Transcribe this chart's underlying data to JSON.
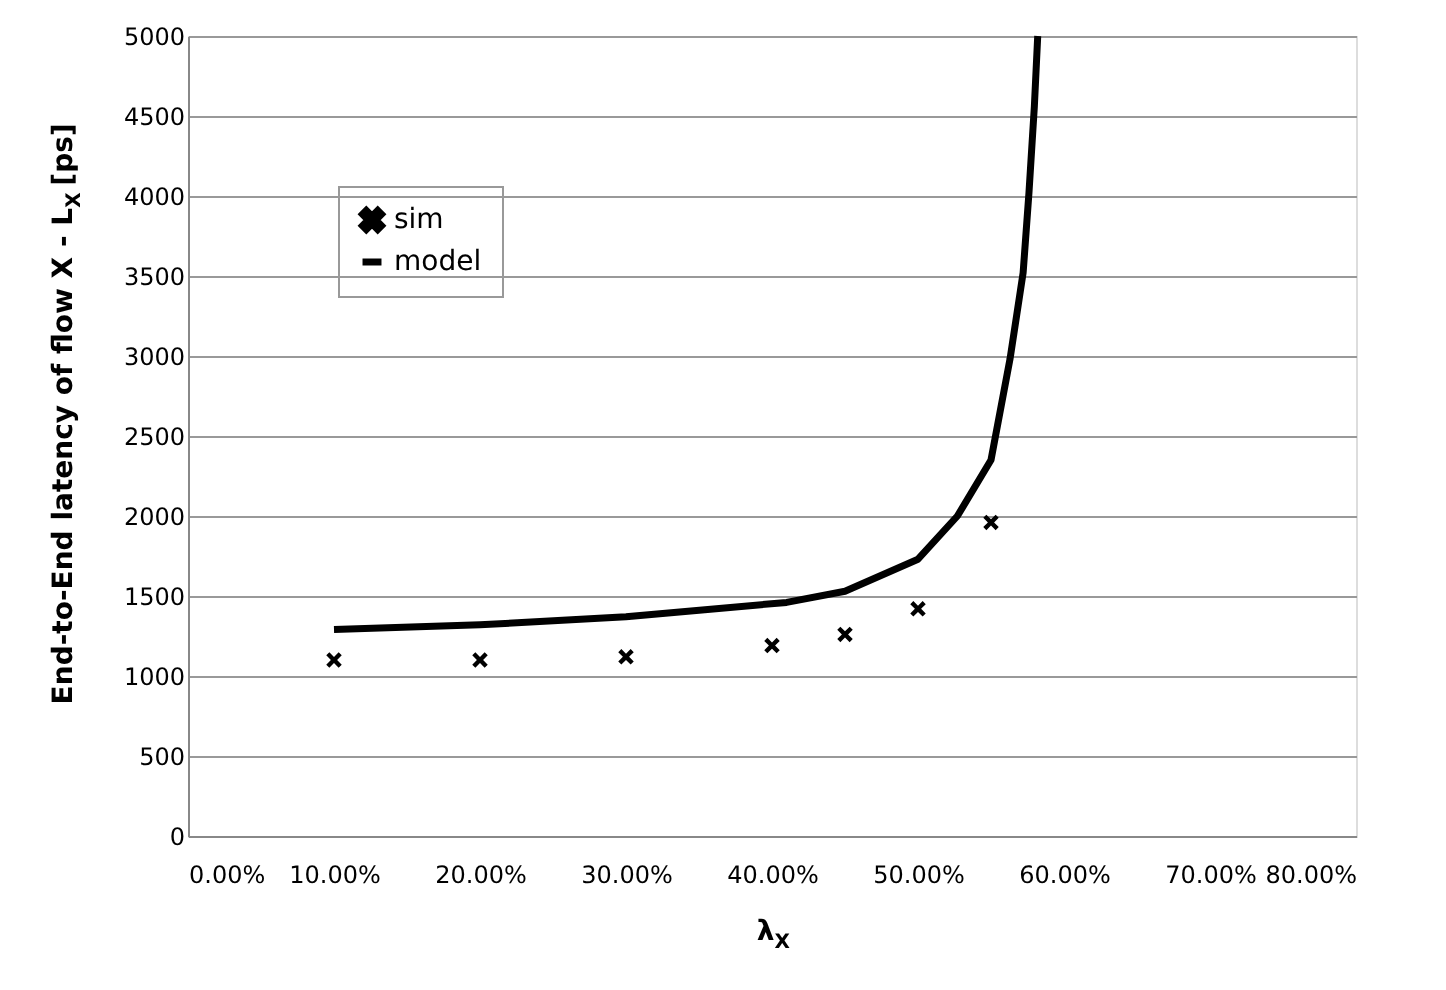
{
  "chart_data": {
    "type": "scatter",
    "xlabel": "λ$_{X}$",
    "ylabel": "End-to-End latency of flow X - L$_{X}$ [ps]",
    "xlim": [
      0,
      0.8
    ],
    "xticks": [
      {
        "value": 0,
        "label": "0.00%"
      },
      {
        "value": 0.1,
        "label": "10.00%"
      },
      {
        "value": 0.2,
        "label": "20.00%"
      },
      {
        "value": 0.3,
        "label": "30.00%"
      },
      {
        "value": 0.4,
        "label": "40.00%"
      },
      {
        "value": 0.5,
        "label": "50.00%"
      },
      {
        "value": 0.6,
        "label": "60.00%"
      },
      {
        "value": 0.7,
        "label": "70.00%"
      },
      {
        "value": 0.8,
        "label": "80.00%"
      }
    ],
    "ylim": [
      0,
      5000
    ],
    "yticks": [
      0,
      500,
      1000,
      1500,
      2000,
      2500,
      3000,
      3500,
      4000,
      4500,
      5000
    ],
    "grid": "y",
    "legend": "top left",
    "series": [
      {
        "name": "sim",
        "marker": "cross",
        "color": "#000000",
        "x": [
          0.1,
          0.2,
          0.3,
          0.4,
          0.45,
          0.5,
          0.55
        ],
        "values": [
          1100,
          1100,
          1120,
          1190,
          1260,
          1420,
          1960
        ]
      },
      {
        "name": "model",
        "type": "line",
        "marker": "none",
        "color": "#000000",
        "x": [
          0.1,
          0.2,
          0.3,
          0.41,
          0.45,
          0.5,
          0.527,
          0.55,
          0.563,
          0.572,
          0.576,
          0.5797,
          0.582
        ],
        "values": [
          1290,
          1320,
          1370,
          1460,
          1530,
          1730,
          2000,
          2350,
          2980,
          3520,
          4020,
          4560,
          5000
        ]
      }
    ]
  }
}
